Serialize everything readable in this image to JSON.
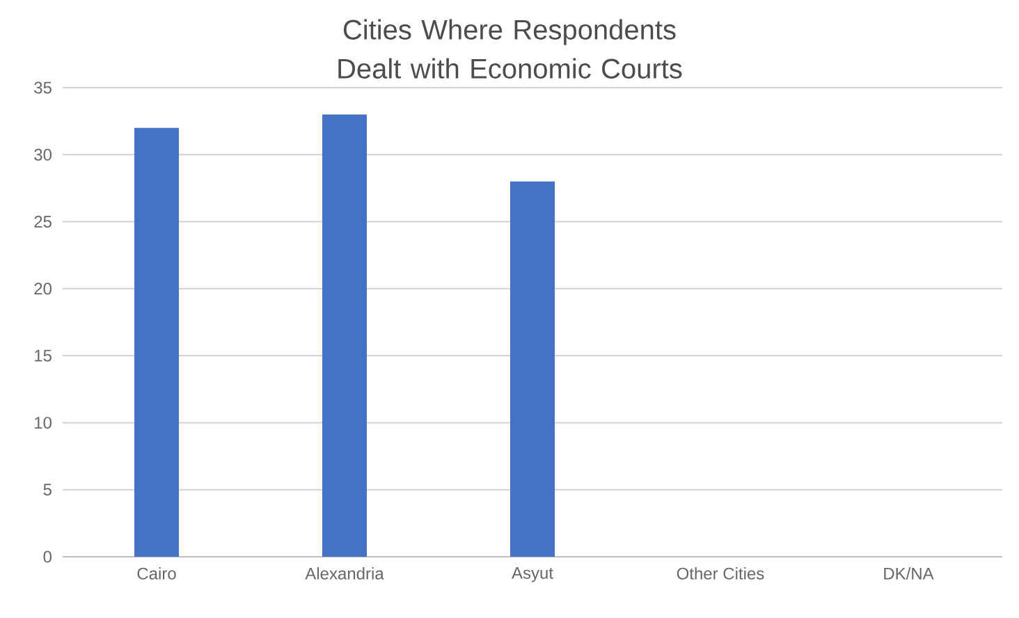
{
  "chart_data": {
    "type": "bar",
    "title": "Cities Where Respondents Dealt with Economic Courts",
    "categories": [
      "Cairo",
      "Alexandria",
      "Asyut",
      "Other Cities",
      "DK/NA"
    ],
    "values": [
      32,
      33,
      28,
      0,
      0
    ],
    "color": "#4472c4",
    "ylim": [
      0,
      35
    ],
    "yticks": [
      0,
      5,
      10,
      15,
      20,
      25,
      30,
      35
    ],
    "grid": "y"
  }
}
